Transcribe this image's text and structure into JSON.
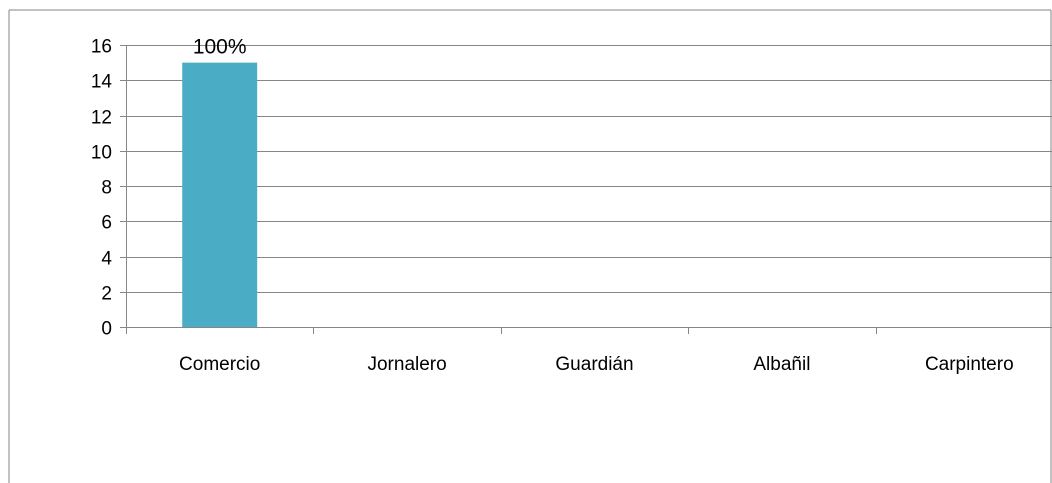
{
  "chart_data": {
    "type": "bar",
    "categories": [
      "Comercio",
      "Jornalero",
      "Guardián",
      "Albañil",
      "Carpintero"
    ],
    "values": [
      15,
      0,
      0,
      0,
      0
    ],
    "data_labels": [
      "100%",
      "",
      "",
      "",
      ""
    ],
    "title": "",
    "xlabel": "",
    "ylabel": "",
    "ylim": [
      0,
      16
    ],
    "yticks": [
      0,
      2,
      4,
      6,
      8,
      10,
      12,
      14,
      16
    ],
    "grid": true,
    "legend": "none",
    "bar_color": "#4BACC6",
    "gridline_color": "#868686",
    "frame_color": "#868686"
  }
}
